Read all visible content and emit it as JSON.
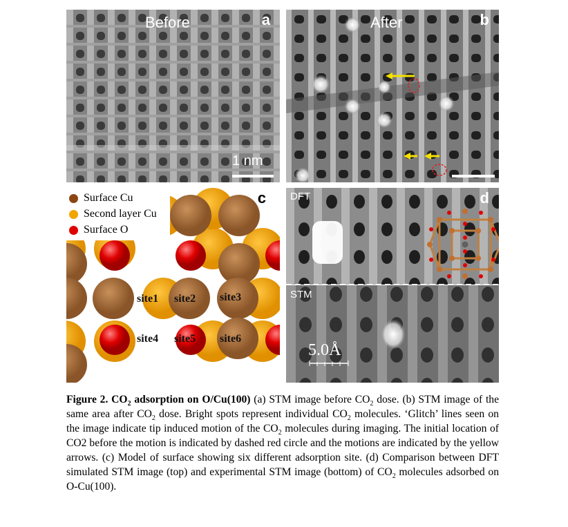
{
  "panel_a": {
    "title": "Before",
    "label": "a",
    "scale": "1 nm"
  },
  "panel_b": {
    "title": "After",
    "label": "b"
  },
  "panel_c": {
    "label": "c",
    "legend": [
      {
        "text": "Surface Cu",
        "color": "#8B4513"
      },
      {
        "text": "Second layer Cu",
        "color": "#F0A500"
      },
      {
        "text": "Surface O",
        "color": "#E00000"
      }
    ],
    "sites": [
      "site1",
      "site2",
      "site3",
      "site4",
      "site5",
      "site6"
    ]
  },
  "panel_d": {
    "label": "d",
    "top_label": "DFT",
    "bottom_label": "STM",
    "scale": "5.0Å"
  },
  "caption": {
    "bold_1": "Figure 2. CO",
    "bold_sub": "2",
    "bold_2": " adsorption on O/Cu(100)",
    "s1": " (a) STM image before CO",
    "s2": " dose. (b) STM image of the same area after CO",
    "s3": " dose. Bright spots represent individual CO",
    "s4": " molecules. ‘Glitch’ lines seen on the image indicate tip induced motion of the CO",
    "s5": " molecules during imaging. The initial location of CO2 before the motion is indicated by dashed red circle and the motions are indicated by the yellow arrows. (c) Model of surface showing six different adsorption site. (d) Comparison between DFT simulated STM image (top) and experimental STM image (bottom) of CO",
    "s6": " molecules adsorbed on O-Cu(100).",
    "sub": "2"
  }
}
